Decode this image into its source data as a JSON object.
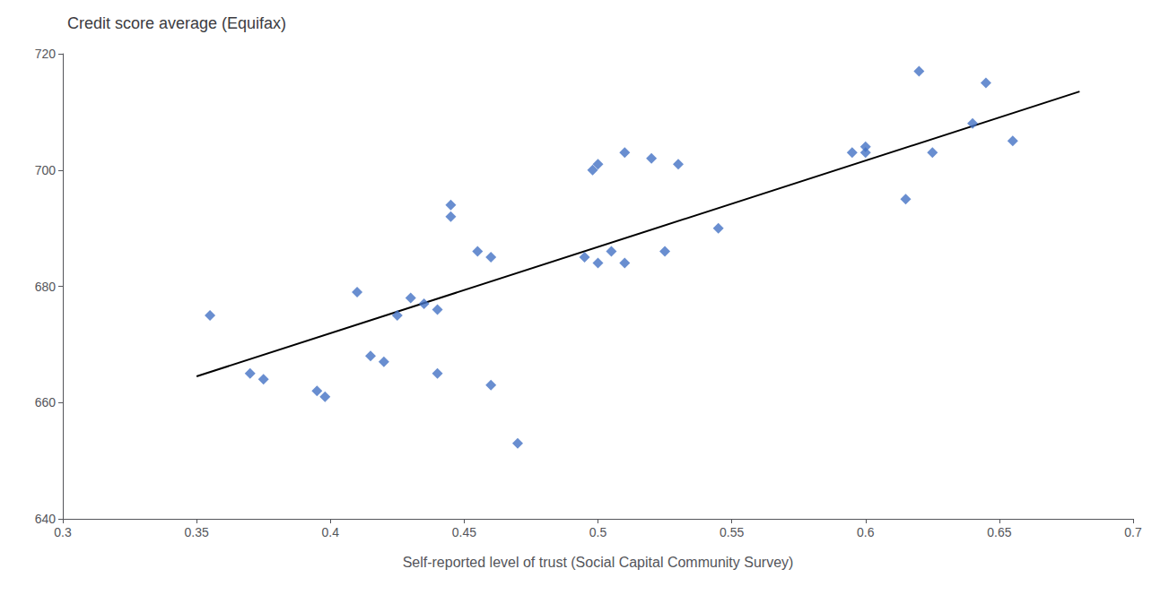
{
  "chart_data": {
    "type": "scatter",
    "title": "Credit score average (Equifax)",
    "xlabel": "Self-reported level of trust (Social Capital Community Survey)",
    "xlim": [
      0.3,
      0.7
    ],
    "xticks": [
      0.3,
      0.35,
      0.4,
      0.45,
      0.5,
      0.55,
      0.6,
      0.65,
      0.7
    ],
    "ylim": [
      640,
      720
    ],
    "yticks": [
      640,
      660,
      680,
      700,
      720
    ],
    "grid": false,
    "series": [
      {
        "type": "scatter",
        "marker": "diamond",
        "color": "#4472C4",
        "x": [
          0.355,
          0.37,
          0.375,
          0.395,
          0.398,
          0.41,
          0.415,
          0.42,
          0.425,
          0.43,
          0.435,
          0.44,
          0.44,
          0.445,
          0.445,
          0.455,
          0.46,
          0.46,
          0.47,
          0.495,
          0.498,
          0.5,
          0.5,
          0.505,
          0.51,
          0.51,
          0.52,
          0.525,
          0.53,
          0.545,
          0.595,
          0.6,
          0.6,
          0.615,
          0.62,
          0.625,
          0.64,
          0.645,
          0.655
        ],
        "values": [
          675,
          665,
          664,
          662,
          661,
          679,
          668,
          667,
          675,
          678,
          677,
          676,
          665,
          692,
          694,
          686,
          685,
          663,
          653,
          685,
          700,
          701,
          684,
          686,
          703,
          684,
          702,
          686,
          701,
          690,
          703,
          703,
          704,
          695,
          717,
          703,
          708,
          715,
          705
        ]
      },
      {
        "type": "line",
        "color": "#000000",
        "x": [
          0.35,
          0.68
        ],
        "values": [
          664.5,
          713.5
        ]
      }
    ]
  }
}
